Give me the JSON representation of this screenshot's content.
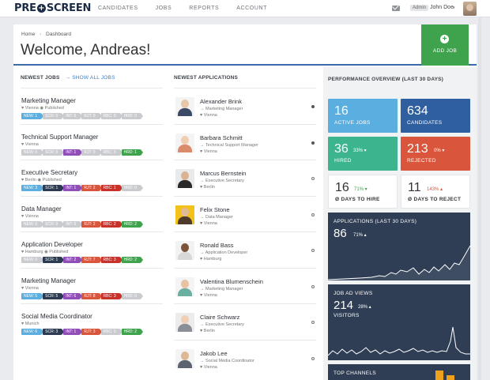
{
  "brand": {
    "logo_left": "PRE",
    "logo_plus": "+",
    "logo_right": "SCREEN"
  },
  "nav": [
    "CANDIDATES",
    "JOBS",
    "REPORTS",
    "ACCOUNT"
  ],
  "user": {
    "role": "Admin",
    "name": "John Doe",
    "caret": "▾"
  },
  "breadcrumb": {
    "home": "Home",
    "sep": "›",
    "current": "Dashboard"
  },
  "welcome": "Welcome, Andreas!",
  "add_job": {
    "icon": "+",
    "label": "ADD JOB"
  },
  "jobs_section": {
    "title": "NEWEST JOBS",
    "show_all": "→ SHOW ALL JOBS"
  },
  "apps_section": {
    "title": "NEWEST APPLICATIONS"
  },
  "perf_section": {
    "title": "PERFORMANCE OVERVIEW (LAST 30 DAYS)"
  },
  "colors": {
    "new": "#5aaee0",
    "scr": "#2d3b52",
    "int": "#8f4fb6",
    "rjt": "#d9553b",
    "rbc": "#c9312b",
    "hrd": "#3fa34d",
    "inactive": "#c9cbcf",
    "accent": "#3d6aa8"
  },
  "jobs": [
    {
      "title": "Marketing Manager",
      "meta": "♥ Vienna  ◉ Published",
      "tags": [
        {
          "label": "NEW: 1",
          "kind": "new"
        },
        {
          "label": "SCR: 0",
          "kind": "inactive"
        },
        {
          "label": "INT: 0",
          "kind": "inactive"
        },
        {
          "label": "RJT: 0",
          "kind": "inactive"
        },
        {
          "label": "RBC: 0",
          "kind": "inactive"
        },
        {
          "label": "HRD: 0",
          "kind": "inactive"
        }
      ]
    },
    {
      "title": "Technical Support Manager",
      "meta": "♥ Vienna",
      "tags": [
        {
          "label": "NEW: 0",
          "kind": "inactive"
        },
        {
          "label": "SCR: 0",
          "kind": "inactive"
        },
        {
          "label": "INT: 1",
          "kind": "int"
        },
        {
          "label": "RJT: 0",
          "kind": "inactive"
        },
        {
          "label": "RBC: 0",
          "kind": "inactive"
        },
        {
          "label": "HRD: 1",
          "kind": "hrd"
        }
      ]
    },
    {
      "title": "Executive Secretary",
      "meta": "♥ Berlin  ◉ Published",
      "tags": [
        {
          "label": "NEW: 3",
          "kind": "new"
        },
        {
          "label": "SCR: 1",
          "kind": "scr"
        },
        {
          "label": "INT: 1",
          "kind": "int"
        },
        {
          "label": "RJT: 2",
          "kind": "rjt"
        },
        {
          "label": "RBC: 1",
          "kind": "rbc"
        },
        {
          "label": "HRD: 0",
          "kind": "inactive"
        }
      ]
    },
    {
      "title": "Data Manager",
      "meta": "♥ Vienna",
      "tags": [
        {
          "label": "NEW: 0",
          "kind": "inactive"
        },
        {
          "label": "SCR: 0",
          "kind": "inactive"
        },
        {
          "label": "INT: 0",
          "kind": "inactive"
        },
        {
          "label": "RJT: 2",
          "kind": "rjt"
        },
        {
          "label": "RBC: 2",
          "kind": "rbc"
        },
        {
          "label": "HRD: 2",
          "kind": "hrd"
        }
      ]
    },
    {
      "title": "Application Developer",
      "meta": "♥ Hamburg  ◉ Published",
      "tags": [
        {
          "label": "NEW: 0",
          "kind": "inactive"
        },
        {
          "label": "SCR: 1",
          "kind": "scr"
        },
        {
          "label": "INT: 2",
          "kind": "int"
        },
        {
          "label": "RJT: 7",
          "kind": "rjt"
        },
        {
          "label": "RBC: 3",
          "kind": "rbc"
        },
        {
          "label": "HRD: 2",
          "kind": "hrd"
        }
      ]
    },
    {
      "title": "Marketing Manager",
      "meta": "♥ Vienna",
      "tags": [
        {
          "label": "NEW: 5",
          "kind": "new"
        },
        {
          "label": "SCR: 5",
          "kind": "scr"
        },
        {
          "label": "INT: 6",
          "kind": "int"
        },
        {
          "label": "RJT: 8",
          "kind": "rjt"
        },
        {
          "label": "RBC: 3",
          "kind": "rbc"
        },
        {
          "label": "HRD: 0",
          "kind": "inactive"
        }
      ]
    },
    {
      "title": "Social Media Coordinator",
      "meta": "♥ Munich",
      "tags": [
        {
          "label": "NEW: 6",
          "kind": "new"
        },
        {
          "label": "SCR: 3",
          "kind": "scr"
        },
        {
          "label": "INT: 1",
          "kind": "int"
        },
        {
          "label": "RJT: 3",
          "kind": "rjt"
        },
        {
          "label": "RBC: 0",
          "kind": "inactive"
        },
        {
          "label": "HRD: 2",
          "kind": "hrd"
        }
      ]
    }
  ],
  "applications": [
    {
      "name": "Alexander Brink",
      "position": "→ Marketing Manager",
      "city": "♥ Vienna",
      "read": true,
      "skin": "#e8c6a8",
      "shirt": "#3b4a66",
      "bg": "#f4f4f4"
    },
    {
      "name": "Barbara Schmitt",
      "position": "→ Technical Support Manager",
      "city": "♥ Vienna",
      "read": true,
      "skin": "#f0cdb0",
      "shirt": "#d98b6a",
      "bg": "#f4f4f4"
    },
    {
      "name": "Marcus Bernstein",
      "position": "→ Executive Secretary",
      "city": "♥ Berlin",
      "read": false,
      "skin": "#d9b394",
      "shirt": "#2a2a2a",
      "bg": "#e9eaec"
    },
    {
      "name": "Felix Stone",
      "position": "→ Data Manager",
      "city": "♥ Vienna",
      "read": false,
      "skin": "#e1bb98",
      "shirt": "#4d3a2a",
      "bg": "#f2c21a"
    },
    {
      "name": "Ronald Bass",
      "position": "→ Application Developer",
      "city": "♥ Hamburg",
      "read": false,
      "skin": "#7a5338",
      "shirt": "#d8d8d8",
      "bg": "#f2f2f2"
    },
    {
      "name": "Valentina Blumenschein",
      "position": "→ Marketing Manager",
      "city": "♥ Vienna",
      "read": false,
      "skin": "#e8c2a2",
      "shirt": "#6ab0a0",
      "bg": "#f4f4f4"
    },
    {
      "name": "Claire Schwarz",
      "position": "→ Executive Secretary",
      "city": "♥ Berlin",
      "read": false,
      "skin": "#efcfb6",
      "shirt": "#8a8e96",
      "bg": "#ececec"
    },
    {
      "name": "Jakob Lee",
      "position": "→ Social Media Coordinator",
      "city": "♥ Vienna",
      "read": false,
      "skin": "#dcb896",
      "shirt": "#5d6470",
      "bg": "#f4f4f4"
    }
  ],
  "stats": {
    "active_jobs": {
      "value": "16",
      "label": "ACTIVE JOBS",
      "color": "#5aaee0"
    },
    "candidates": {
      "value": "634",
      "label": "CANDIDATES",
      "color": "#2f5f9e"
    },
    "hired": {
      "value": "36",
      "delta": "33% ▾",
      "label": "HIRED",
      "color": "#3cb58f"
    },
    "rejected": {
      "value": "213",
      "delta": "0% ▾",
      "label": "REJECTED",
      "color": "#d9553b"
    },
    "days_to_hire": {
      "value": "16",
      "delta": "71% ▾",
      "label": "Ø DAYS TO HIRE",
      "delta_color": "#3fa34d"
    },
    "days_to_reject": {
      "value": "11",
      "delta": "143% ▴",
      "label": "Ø DAYS TO REJECT",
      "delta_color": "#d9553b"
    },
    "applications": {
      "title": "APPLICATIONS (LAST 30 DAYS)",
      "value": "86",
      "delta": "71% ▴"
    },
    "job_ad_views": {
      "title": "JOB AD VIEWS",
      "value": "214",
      "delta": "28% ▴",
      "sub": "VISITORS"
    },
    "top_channels": {
      "title": "TOP CHANNELS"
    }
  }
}
